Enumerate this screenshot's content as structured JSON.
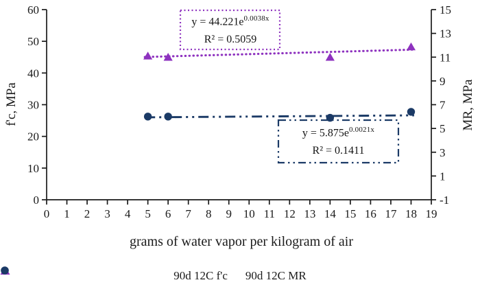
{
  "chart_data": {
    "type": "scatter",
    "title": "",
    "xlabel": "grams of water vapor per kilogram of air",
    "ylabel_left": "f'c, MPa",
    "ylabel_right": "MR, MPa",
    "xlim": [
      0,
      19
    ],
    "ylim_left": [
      0,
      60
    ],
    "ylim_right": [
      -1,
      15
    ],
    "x_ticks": [
      0,
      1,
      2,
      3,
      4,
      5,
      6,
      7,
      8,
      9,
      10,
      11,
      12,
      13,
      14,
      15,
      16,
      17,
      18,
      19
    ],
    "y_ticks_left": [
      0,
      10,
      20,
      30,
      40,
      50,
      60
    ],
    "y_ticks_right": [
      -1,
      1,
      3,
      5,
      7,
      9,
      11,
      13,
      15
    ],
    "grid": false,
    "legend_position": "bottom",
    "axis_color": "#1a1a1a",
    "series": [
      {
        "name": "90d 12C f'c",
        "marker": "triangle",
        "color": "#8e32bf",
        "axis": "left",
        "points": [
          {
            "x": 5,
            "y": 45.4
          },
          {
            "x": 6,
            "y": 45.0
          },
          {
            "x": 14,
            "y": 45.0
          },
          {
            "x": 18,
            "y": 48.3
          }
        ],
        "trendline": {
          "type": "exponential",
          "a": 44.221,
          "b": 0.0038,
          "style": "dotted",
          "equation_prefix": "y = 44.221e",
          "equation_exponent": "0.0038x",
          "r_squared": "R² = 0.5059"
        }
      },
      {
        "name": "90d 12C MR",
        "marker": "circle",
        "color": "#1b3a66",
        "axis": "right",
        "points": [
          {
            "x": 5,
            "y": 6.0
          },
          {
            "x": 6,
            "y": 6.0
          },
          {
            "x": 14,
            "y": 5.9
          },
          {
            "x": 18,
            "y": 6.4
          }
        ],
        "trendline": {
          "type": "exponential",
          "a": 5.875,
          "b": 0.0021,
          "style": "dash-dot-dot",
          "equation_prefix": "y = 5.875e",
          "equation_exponent": "0.0021x",
          "r_squared": "R² = 0.1411"
        }
      }
    ]
  }
}
